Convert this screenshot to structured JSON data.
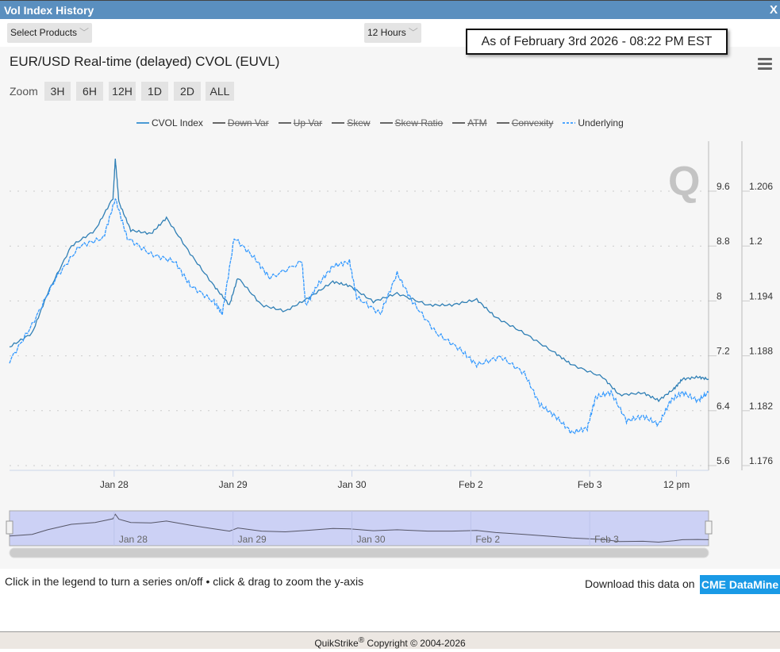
{
  "window": {
    "title": "Vol Index History",
    "close_label": "X"
  },
  "controls": {
    "select_products": "Select Products",
    "interval": "12 Hours",
    "as_of": "As of February 3rd 2026 - 08:22 PM EST"
  },
  "chart_header": {
    "title": "EUR/USD Real-time (delayed) CVOL (EUVL)",
    "zoom_label": "Zoom",
    "zoom_buttons": [
      "3H",
      "6H",
      "12H",
      "1D",
      "2D",
      "ALL"
    ]
  },
  "legend": [
    {
      "label": "CVOL Index",
      "active": true,
      "color": "#4a9ad4",
      "dashed": false
    },
    {
      "label": "Down Var",
      "active": false,
      "color": "#666666"
    },
    {
      "label": "Up Var",
      "active": false,
      "color": "#666666"
    },
    {
      "label": "Skew",
      "active": false,
      "color": "#666666"
    },
    {
      "label": "Skew Ratio",
      "active": false,
      "color": "#666666"
    },
    {
      "label": "ATM",
      "active": false,
      "color": "#666666"
    },
    {
      "label": "Convexity",
      "active": false,
      "color": "#666666"
    },
    {
      "label": "Underlying",
      "active": true,
      "color": "#4da6ff",
      "dashed": true
    }
  ],
  "chart_data": {
    "type": "line",
    "title": "EUR/USD Real-time (delayed) CVOL (EUVL)",
    "x_ticks": [
      {
        "x": 1,
        "label": "Jan 28"
      },
      {
        "x": 2,
        "label": "Jan 29"
      },
      {
        "x": 3,
        "label": "Jan 30"
      },
      {
        "x": 4,
        "label": "Feb 2"
      },
      {
        "x": 5,
        "label": "Feb 3"
      },
      {
        "x": 5.73,
        "label": "12 pm"
      }
    ],
    "xlim": [
      0.12,
      6.0
    ],
    "y_left": {
      "ticks": [
        "5.6",
        "6.4",
        "7.2",
        "8",
        "8.8",
        "9.6"
      ],
      "ylim": [
        5.6,
        10.4
      ]
    },
    "y_right": {
      "ticks": [
        "1.176",
        "1.182",
        "1.188",
        "1.194",
        "1.2",
        "1.206"
      ],
      "ylim": [
        1.176,
        1.2125
      ]
    },
    "series": [
      {
        "name": "CVOL Index",
        "axis": "left",
        "color": "#2f7fb5",
        "x": [
          0.12,
          0.31,
          0.44,
          0.64,
          0.84,
          0.99,
          1.01,
          1.04,
          1.14,
          1.31,
          1.44,
          1.64,
          1.84,
          1.97,
          2.04,
          2.24,
          2.44,
          2.64,
          2.84,
          2.98,
          3.18,
          3.38,
          3.64,
          3.84,
          4.05,
          4.21,
          4.45,
          4.71,
          4.85,
          5.11,
          5.25,
          5.45,
          5.58,
          5.71,
          5.78,
          5.91,
          6.0
        ],
        "y": [
          7.33,
          7.53,
          8.11,
          8.8,
          9.03,
          9.5,
          10.07,
          9.44,
          9.03,
          8.98,
          9.21,
          8.69,
          8.22,
          7.94,
          8.34,
          7.94,
          7.85,
          8.05,
          8.28,
          8.22,
          7.99,
          8.11,
          7.94,
          7.94,
          8.02,
          7.76,
          7.53,
          7.24,
          7.07,
          6.89,
          6.63,
          6.66,
          6.55,
          6.72,
          6.86,
          6.89,
          6.86
        ]
      },
      {
        "name": "Underlying",
        "axis": "right",
        "color": "#3399ff",
        "dashed": true,
        "x": [
          0.12,
          0.31,
          0.51,
          0.71,
          0.91,
          1.01,
          1.11,
          1.31,
          1.51,
          1.64,
          1.84,
          1.91,
          2.01,
          2.18,
          2.31,
          2.58,
          2.61,
          2.71,
          2.84,
          2.98,
          3.04,
          3.24,
          3.38,
          3.51,
          3.71,
          3.91,
          4.05,
          4.25,
          4.45,
          4.58,
          4.71,
          4.85,
          4.98,
          5.05,
          5.18,
          5.31,
          5.45,
          5.58,
          5.68,
          5.78,
          5.91,
          6.0
        ],
        "y": [
          1.1874,
          1.1914,
          1.1965,
          1.2,
          1.2009,
          1.2052,
          1.2009,
          1.1991,
          1.1983,
          1.1957,
          1.1939,
          1.1926,
          1.2009,
          1.1987,
          1.1965,
          1.1983,
          1.1935,
          1.1957,
          1.1978,
          1.1983,
          1.1944,
          1.1926,
          1.197,
          1.1939,
          1.1905,
          1.1887,
          1.187,
          1.1879,
          1.1861,
          1.1827,
          1.1814,
          1.1796,
          1.1801,
          1.1835,
          1.184,
          1.1809,
          1.1814,
          1.1805,
          1.1831,
          1.184,
          1.1831,
          1.184
        ]
      }
    ],
    "navigator_ticks": [
      "Jan 28",
      "Jan 29",
      "Jan 30",
      "Feb 2",
      "Feb 3"
    ],
    "grid": true,
    "legend_position": "top-center"
  },
  "footer": {
    "hint": "Click in the legend to turn a series on/off • click & drag to zoom the y-axis",
    "download_text": "Download this data on",
    "download_button": "CME DataMine",
    "copyright_brand": "QuikStrike",
    "copyright_mark": "®",
    "copyright": "Copyright © 2004-2026"
  }
}
